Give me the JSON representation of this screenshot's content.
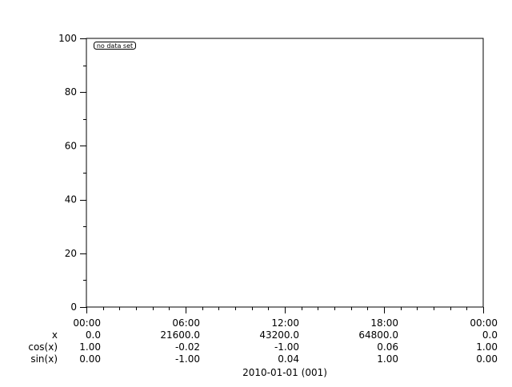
{
  "chart_data": {
    "type": "line",
    "title": "",
    "series": [],
    "annotation": "no data set",
    "ylim": [
      0,
      100
    ],
    "y_ticks": [
      "0",
      "20",
      "40",
      "60",
      "80",
      "100"
    ],
    "y_tick_values": [
      0,
      20,
      40,
      60,
      80,
      100
    ],
    "x_tick_fraction": [
      0,
      0.25,
      0.5,
      0.75,
      1
    ],
    "x_tick_rows": [
      {
        "label": "",
        "values": [
          "00:00",
          "06:00",
          "12:00",
          "18:00",
          "00:00"
        ]
      },
      {
        "label": "x",
        "values": [
          "0.0",
          "21600.0",
          "43200.0",
          "64800.0",
          "0.0"
        ]
      },
      {
        "label": "cos(x)",
        "values": [
          "1.00",
          "-0.02",
          "-1.00",
          "0.06",
          "1.00"
        ]
      },
      {
        "label": "sin(x)",
        "values": [
          "0.00",
          "-1.00",
          "0.04",
          "1.00",
          "0.00"
        ]
      }
    ],
    "xlabel": "2010-01-01 (001)",
    "grid": false,
    "colors": {
      "axis": "#000000",
      "background": "#ffffff"
    }
  }
}
